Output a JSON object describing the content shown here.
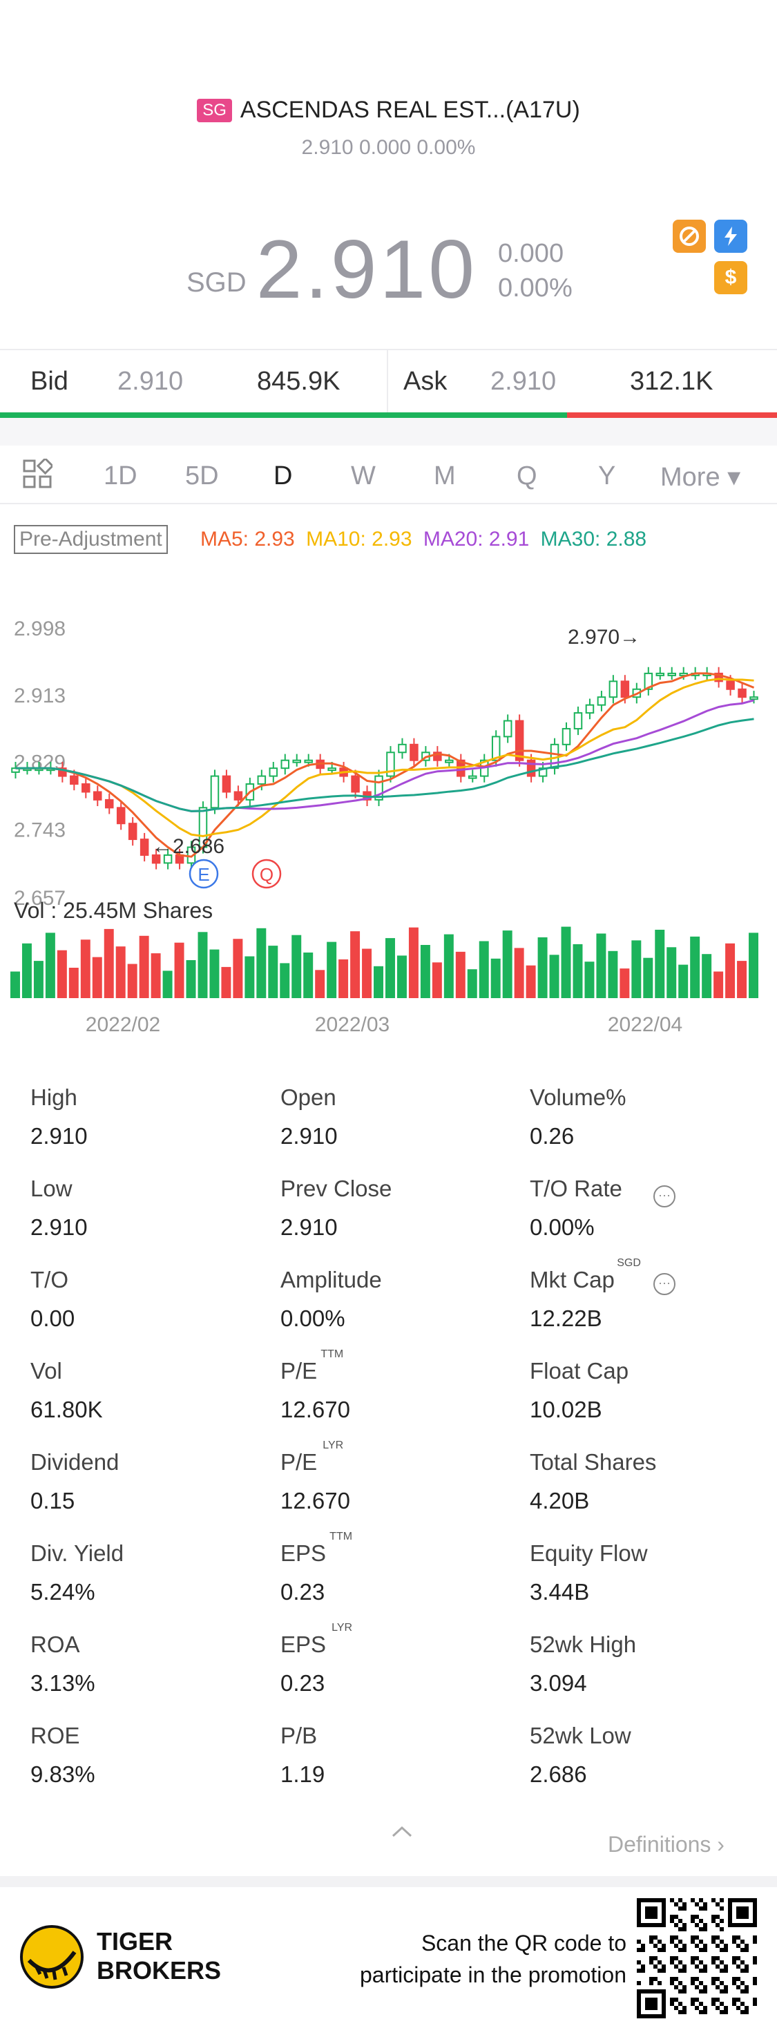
{
  "header": {
    "market_badge": "SG",
    "title": "ASCENDAS REAL EST...(A17U)",
    "subline": "2.910 0.000 0.00%",
    "currency": "SGD",
    "price": "2.910",
    "change": "0.000",
    "change_pct": "0.00%"
  },
  "icons": {
    "icon1": "no-short-icon",
    "icon2": "lightning-icon",
    "icon3": "dollar-icon"
  },
  "bidask": {
    "bid_label": "Bid",
    "bid_price": "2.910",
    "bid_size": "845.9K",
    "ask_label": "Ask",
    "ask_price": "2.910",
    "ask_size": "312.1K",
    "bid_share": 0.73
  },
  "tabs": [
    "1D",
    "5D",
    "D",
    "W",
    "M",
    "Q",
    "Y",
    "More ▾"
  ],
  "active_tab": "D",
  "ma": {
    "pre_adjustment": "Pre-Adjustment",
    "ma5": "MA5: 2.93",
    "ma10": "MA10: 2.93",
    "ma20": "MA20: 2.91",
    "ma30": "MA30: 2.88",
    "colors": {
      "ma5": "#f0602b",
      "ma10": "#f5b800",
      "ma20": "#a64bd6",
      "ma30": "#1ea58a"
    }
  },
  "chart_data": {
    "type": "candlestick",
    "y_ticks": [
      "2.998",
      "2.913",
      "2.829",
      "2.743",
      "2.657"
    ],
    "ylim": [
      2.657,
      2.998
    ],
    "x_ticks": [
      "2022/02",
      "2022/03",
      "2022/04"
    ],
    "max_label": "2.970",
    "min_label": "2.686",
    "event_markers": [
      "E",
      "Q"
    ],
    "volume_label": "Vol  : 25.45M Shares",
    "up_color": "#1cb35b",
    "down_color": "#ef4545"
  },
  "stats": [
    {
      "label": "High",
      "value": "2.910",
      "sup": ""
    },
    {
      "label": "Open",
      "value": "2.910",
      "sup": ""
    },
    {
      "label": "Volume%",
      "value": "0.26",
      "sup": ""
    },
    {
      "label": "Low",
      "value": "2.910",
      "sup": ""
    },
    {
      "label": "Prev Close",
      "value": "2.910",
      "sup": ""
    },
    {
      "label": "T/O Rate",
      "value": "0.00%",
      "sup": ""
    },
    {
      "label": "T/O",
      "value": "0.00",
      "sup": ""
    },
    {
      "label": "Amplitude",
      "value": "0.00%",
      "sup": ""
    },
    {
      "label": "Mkt Cap",
      "value": "12.22B",
      "sup": "SGD"
    },
    {
      "label": "Vol",
      "value": "61.80K",
      "sup": ""
    },
    {
      "label": "P/E",
      "value": "12.670",
      "sup": "TTM"
    },
    {
      "label": "Float Cap",
      "value": "10.02B",
      "sup": ""
    },
    {
      "label": "Dividend",
      "value": "0.15",
      "sup": ""
    },
    {
      "label": "P/E",
      "value": "12.670",
      "sup": "LYR"
    },
    {
      "label": "Total Shares",
      "value": "4.20B",
      "sup": ""
    },
    {
      "label": "Div. Yield",
      "value": "5.24%",
      "sup": ""
    },
    {
      "label": "EPS",
      "value": "0.23",
      "sup": "TTM"
    },
    {
      "label": "Equity Flow",
      "value": "3.44B",
      "sup": ""
    },
    {
      "label": "ROA",
      "value": "3.13%",
      "sup": ""
    },
    {
      "label": "EPS",
      "value": "0.23",
      "sup": "LYR"
    },
    {
      "label": "52wk High",
      "value": "3.094",
      "sup": ""
    },
    {
      "label": "ROE",
      "value": "9.83%",
      "sup": ""
    },
    {
      "label": "P/B",
      "value": "1.19",
      "sup": ""
    },
    {
      "label": "52wk Low",
      "value": "2.686",
      "sup": ""
    }
  ],
  "definitions": "Definitions",
  "footer": {
    "brand_line1": "TIGER",
    "brand_line2": "BROKERS",
    "promo_line1": "Scan the QR code to",
    "promo_line2": "participate in the promotion"
  }
}
